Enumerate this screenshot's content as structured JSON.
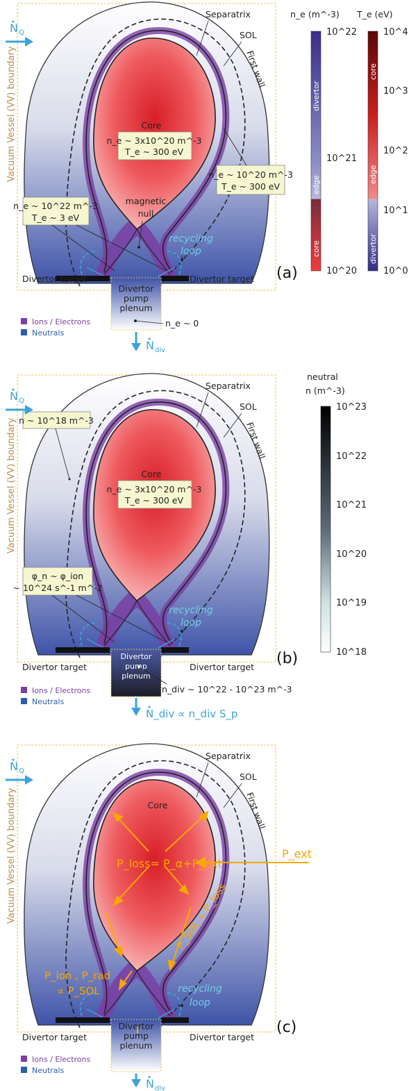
{
  "common": {
    "separatrix": "Separatrix",
    "sol": "SOL",
    "first_wall": "First wall",
    "vv_boundary": "Vacuum Vessel (VV) boundary",
    "core": "Core",
    "recycling1": "recycling",
    "recycling2": "loop",
    "divertor_target": "Divertor target",
    "plenum1": "Divertor",
    "plenum2": "pump",
    "plenum3": "plenum",
    "legend_ions": "Ions / Electrons",
    "legend_neutrals": "Neutrals",
    "nq": "N",
    "nq_sub": "Q",
    "ndiv": "N",
    "ndiv_sub": "div"
  },
  "panel_a": {
    "label": "(a)",
    "core_ne": "n_e ~ 3x10^20 m^-3",
    "core_te": "T_e ~ 300 eV",
    "sol_ne": "n_e ~ 10^20 m^-3",
    "sol_te": "T_e ~ 300 eV",
    "div_ne": "n_e ~ 10^22 m^-3",
    "div_te": "T_e ~ 3 eV",
    "null1": "magnetic",
    "null2": "null",
    "plenum_ne": "n_e ~ 0",
    "cb_ne_title": "n_e (m^-3)",
    "cb_ne_ticks": [
      "10^22",
      "10^21",
      "10^20"
    ],
    "cb_ne_regions": [
      "divertor",
      "edge",
      "core"
    ],
    "cb_te_title": "T_e (eV)",
    "cb_te_ticks": [
      "10^4",
      "10^3",
      "10^2",
      "10^1",
      "10^0"
    ],
    "cb_te_regions": [
      "core",
      "edge",
      "divertor"
    ]
  },
  "panel_b": {
    "label": "(b)",
    "core_ne": "n_e ~ 3x10^20 m^-3",
    "core_te": "T_e ~ 300 eV",
    "edge_n": "n ~ 10^18 m^-3",
    "flux1": "φ_n ~ φ_ion",
    "flux2": "~ 10^24 s^-1 m^-2",
    "ndiv_text": "n_div ~ 10^22 - 10^23 m^-3",
    "ndiv_flux": "N_div ∝ n_div S_p",
    "cb_title1": "neutral",
    "cb_title2": "n (m^-3)",
    "cb_ticks": [
      "10^23",
      "10^22",
      "10^21",
      "10^20",
      "10^19",
      "10^18"
    ]
  },
  "panel_c": {
    "label": "(c)",
    "ploss": "P_loss= P_α+P_ext",
    "pext": "P_ext",
    "psol": "P_SOL ∝ P_loss",
    "pion": "P_ion , P_rad",
    "psol2": "∝ P_SOL"
  },
  "colors": {
    "core_red": "#e8353d",
    "core_pink": "#f7a3a3",
    "vessel_blue": "#5a6fb5",
    "div_purple": "#7a3ea4",
    "neutral_blue": "#3a6fb7",
    "flux_blue": "#3aa3dc",
    "power_orange": "#f7a800",
    "vv_tan": "#b8894a"
  }
}
